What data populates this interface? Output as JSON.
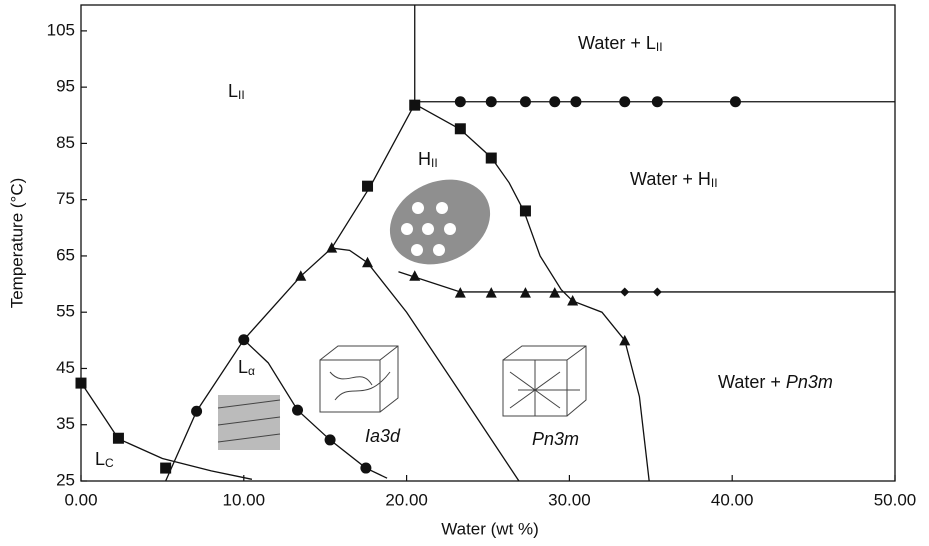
{
  "chart_data": {
    "type": "scatter",
    "xlabel": "Water (wt %)",
    "ylabel": "Temperature (°C)",
    "xlim": [
      0,
      50
    ],
    "ylim": [
      25,
      109.6
    ],
    "xticks": [
      {
        "value": 0,
        "label": "0.00"
      },
      {
        "value": 10,
        "label": "10.00"
      },
      {
        "value": 20,
        "label": "20.00"
      },
      {
        "value": 30,
        "label": "30.00"
      },
      {
        "value": 40,
        "label": "40.00"
      },
      {
        "value": 50,
        "label": "50.00"
      }
    ],
    "yticks": [
      25,
      35,
      45,
      55,
      65,
      75,
      85,
      95,
      105
    ],
    "series": [
      {
        "marker": "square",
        "color": "#111111",
        "x": [
          0,
          2.3,
          5.2,
          17.6,
          20.5,
          23.3,
          25.2,
          27.3
        ],
        "values": [
          42.4,
          32.6,
          27.3,
          77.4,
          91.8,
          87.6,
          82.4,
          73
        ]
      },
      {
        "marker": "circle",
        "color": "#111111",
        "x": [
          7.1,
          10,
          13.3,
          15.3,
          17.5,
          23.3,
          25.2,
          27.3,
          29.1,
          30.4,
          33.4,
          35.4,
          40.2
        ],
        "values": [
          37.4,
          50.1,
          37.6,
          32.3,
          27.3,
          92.4,
          92.4,
          92.4,
          92.4,
          92.4,
          92.4,
          92.4,
          92.4
        ]
      },
      {
        "marker": "triangle",
        "color": "#111111",
        "x": [
          13.5,
          15.4,
          17.6,
          20.5,
          23.3,
          25.2,
          27.3,
          29.1,
          30.2,
          33.4
        ],
        "values": [
          61.4,
          66.4,
          63.8,
          61.4,
          58.4,
          58.4,
          58.4,
          58.4,
          57,
          49.9
        ]
      },
      {
        "marker": "diamond",
        "color": "#111111",
        "x": [
          33.4,
          35.4
        ],
        "values": [
          58.6,
          58.6
        ]
      }
    ],
    "boundaries": [
      {
        "x": [
          20.5,
          20.5
        ],
        "y": [
          92,
          109.6
        ]
      },
      {
        "x": [
          20.5,
          50
        ],
        "y": [
          92.4,
          92.4
        ]
      },
      {
        "x": [
          19.5,
          23.3,
          50
        ],
        "y": [
          62.2,
          58.6,
          58.6
        ]
      },
      {
        "x": [
          5.2,
          7.1,
          10,
          13.5,
          15.4,
          17.8,
          20.5
        ],
        "y": [
          25,
          37.4,
          50.1,
          61.4,
          66.4,
          77.5,
          92
        ]
      },
      {
        "x": [
          20.5,
          23.3,
          25.2,
          26.3,
          27.2,
          28.2,
          29.5,
          30.2,
          32,
          33.4,
          34.3,
          34.9
        ],
        "y": [
          92,
          87.5,
          82.5,
          78,
          73,
          65,
          59,
          57,
          55,
          50,
          40,
          25
        ]
      },
      {
        "x": [
          10,
          11.5,
          13.3,
          15.3,
          17.5,
          18.8
        ],
        "y": [
          50.1,
          46,
          37.6,
          32.3,
          27.3,
          25.5
        ]
      },
      {
        "x": [
          0,
          1.5,
          2.3,
          5,
          8,
          10.5
        ],
        "y": [
          42.5,
          36,
          32.5,
          29,
          26.8,
          25.3
        ]
      },
      {
        "x": [
          15.4,
          16.5,
          17.6,
          20,
          23,
          26.9
        ],
        "y": [
          66.4,
          66,
          63.8,
          55,
          42,
          25
        ]
      }
    ],
    "annotations": [
      {
        "text": "L",
        "sub": "II"
      },
      {
        "text": "Water + L",
        "sub": "II"
      },
      {
        "text": "H",
        "sub": "II"
      },
      {
        "text": "Water + H",
        "sub": "II"
      },
      {
        "text": "L",
        "sub": "α"
      },
      {
        "italic": "Ia3d"
      },
      {
        "italic": "Pn3m"
      },
      {
        "text": "Water + ",
        "italic": "Pn3m"
      },
      {
        "text": "L",
        "sub": "C"
      }
    ]
  }
}
